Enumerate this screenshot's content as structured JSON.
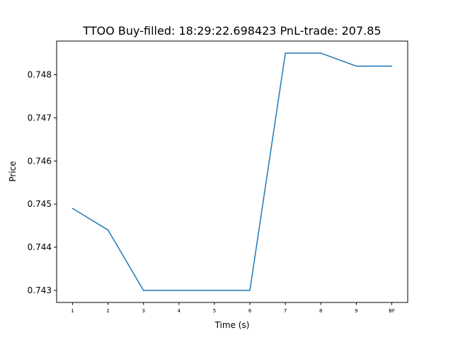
{
  "chart_data": {
    "type": "line",
    "title": "TTOO  Buy-filled:  18:29:22.698423  PnL-trade:  207.85",
    "xlabel": "Time (s)",
    "ylabel": "Price",
    "categories": [
      "1",
      "2",
      "3",
      "4",
      "5",
      "6",
      "7",
      "8",
      "9",
      "BF"
    ],
    "series": [
      {
        "values": [
          0.7449,
          0.7444,
          0.743,
          0.743,
          0.743,
          0.743,
          0.7485,
          0.7485,
          0.7482,
          0.7482
        ]
      }
    ],
    "ylim": [
      0.74272,
      0.74878
    ],
    "yticks": [
      "0.743",
      "0.744",
      "0.745",
      "0.746",
      "0.747",
      "0.748"
    ],
    "grid": false,
    "line_color": "#1f77b4"
  }
}
